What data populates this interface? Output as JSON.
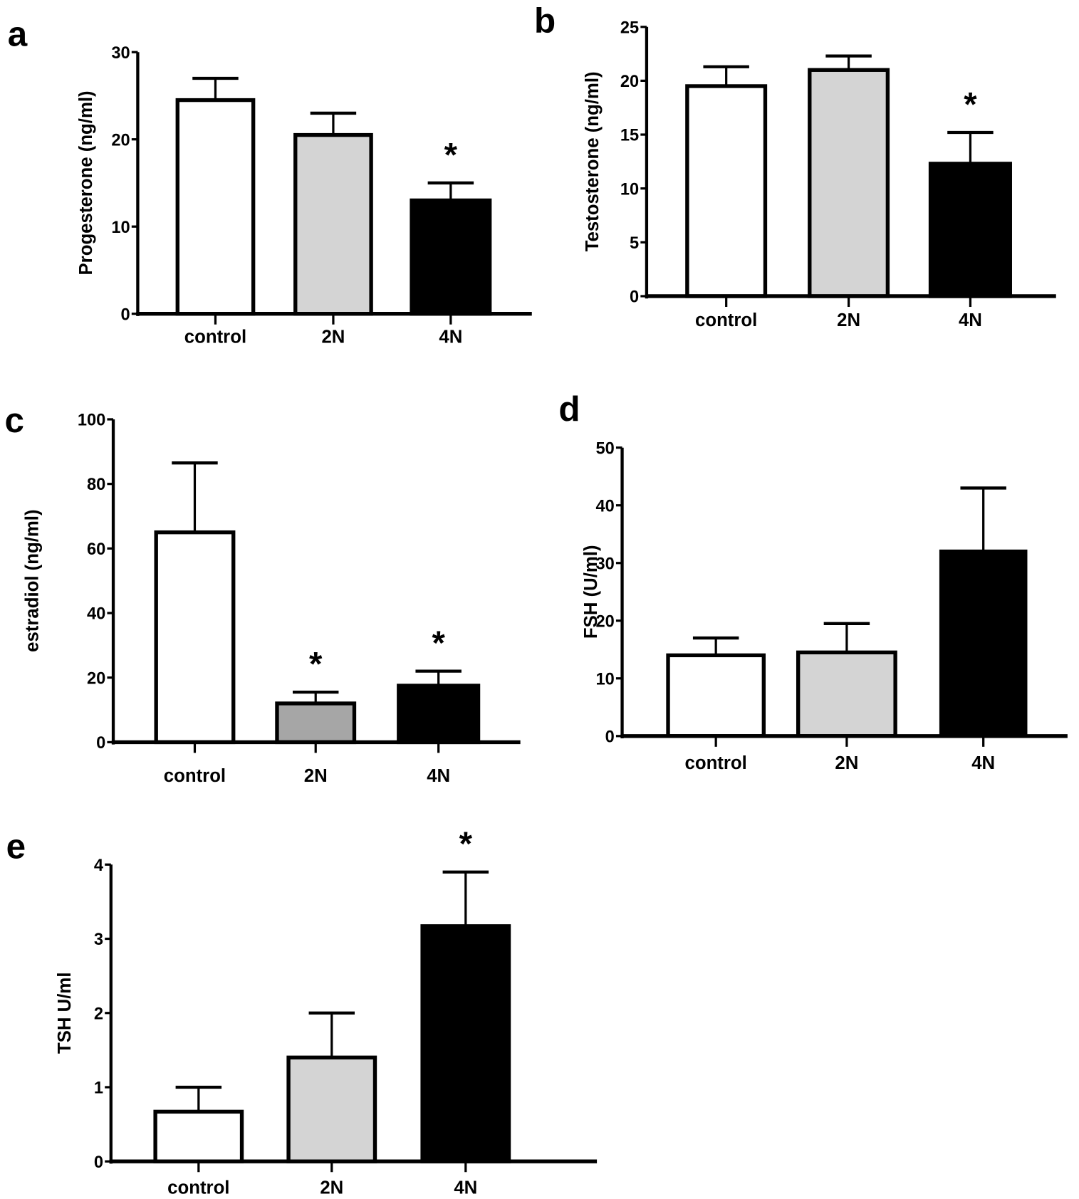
{
  "chart_data": [
    {
      "type": "bar",
      "panel": "a",
      "ylabel": "Progesterone (ng/ml)",
      "categories": [
        "control",
        "2N",
        "4N"
      ],
      "values": [
        24.5,
        20.5,
        13
      ],
      "error_upper": [
        27,
        23,
        15
      ],
      "ylim": [
        0,
        30
      ],
      "yticks": [
        "0",
        "10",
        "20",
        "30"
      ],
      "fills": [
        "#ffffff",
        "#d4d4d4",
        "#000000"
      ],
      "annotations": [
        null,
        null,
        "*"
      ]
    },
    {
      "type": "bar",
      "panel": "b",
      "ylabel": "Testosterone (ng/ml)",
      "categories": [
        "control",
        "2N",
        "4N"
      ],
      "values": [
        19.5,
        21,
        12.3
      ],
      "error_upper": [
        21.3,
        22.3,
        15.2
      ],
      "ylim": [
        0,
        25
      ],
      "yticks": [
        "0",
        "5",
        "10",
        "15",
        "20",
        "25"
      ],
      "fills": [
        "#ffffff",
        "#d4d4d4",
        "#000000"
      ],
      "annotations": [
        null,
        null,
        "*"
      ]
    },
    {
      "type": "bar",
      "panel": "c",
      "ylabel": "estradiol (ng/ml)",
      "categories": [
        "control",
        "2N",
        "4N"
      ],
      "values": [
        65,
        12,
        17.5
      ],
      "error_upper": [
        86.5,
        15.5,
        22
      ],
      "ylim": [
        0,
        100
      ],
      "yticks": [
        "0",
        "20",
        "40",
        "60",
        "80",
        "100"
      ],
      "fills": [
        "#ffffff",
        "#a6a6a6",
        "#000000"
      ],
      "annotations": [
        null,
        "*",
        "*"
      ]
    },
    {
      "type": "bar",
      "panel": "d",
      "ylabel": "FSH (U/ml)",
      "categories": [
        "control",
        "2N",
        "4N"
      ],
      "values": [
        14,
        14.5,
        32
      ],
      "error_upper": [
        17,
        19.5,
        43
      ],
      "ylim": [
        0,
        50
      ],
      "yticks": [
        "0",
        "10",
        "20",
        "30",
        "40",
        "50"
      ],
      "fills": [
        "#ffffff",
        "#d4d4d4",
        "#000000"
      ],
      "annotations": [
        null,
        null,
        null
      ]
    },
    {
      "type": "bar",
      "panel": "e",
      "ylabel": "TSH U/ml",
      "categories": [
        "control",
        "2N",
        "4N"
      ],
      "values": [
        0.67,
        1.4,
        3.17
      ],
      "error_upper": [
        1.0,
        2.0,
        3.9
      ],
      "ylim": [
        0,
        4
      ],
      "yticks": [
        "0",
        "1",
        "2",
        "3",
        "4"
      ],
      "fills": [
        "#ffffff",
        "#d4d4d4",
        "#000000"
      ],
      "annotations": [
        null,
        null,
        "*"
      ]
    }
  ]
}
